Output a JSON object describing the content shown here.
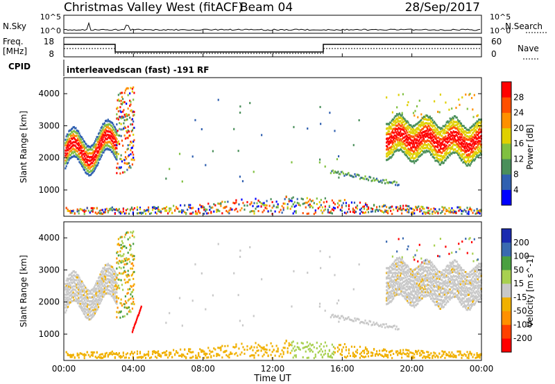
{
  "header": {
    "station": "Christmas Valley West (fitACF)",
    "beam": "Beam 04",
    "date": "28/Sep/2017"
  },
  "noise": {
    "left_label": "N.Sky",
    "right_label": "N.Search",
    "left_ticks": [
      "10^5",
      "10^0"
    ],
    "right_ticks": [
      "10^5",
      "10^0"
    ]
  },
  "freq": {
    "left_label_1": "Freq.",
    "left_label_2": "[MHz]",
    "left_ticks": [
      "18",
      "8"
    ],
    "right_label": "Nave",
    "right_ticks": [
      "60",
      "0"
    ]
  },
  "cpid": {
    "label": "CPID",
    "text": "interleavedscan (fast) -191 RF"
  },
  "colors": {
    "power": [
      "#0000ff",
      "#3060b0",
      "#4a8f5a",
      "#80c040",
      "#e0d000",
      "#ff9000",
      "#ff5000",
      "#ff0000"
    ],
    "velocity": [
      "#ff0000",
      "#ff4000",
      "#ff9000",
      "#f0b000",
      "#c8c8c8",
      "#a8d050",
      "#4aa040",
      "#3a6ab0",
      "#1a2ab0"
    ]
  },
  "chart_data": [
    {
      "type": "heatmap",
      "title": "",
      "xlabel": "Time UT",
      "ylabel": "Slant Range [km]",
      "x_ticks": [
        "00:00",
        "04:00",
        "08:00",
        "12:00",
        "16:00",
        "20:00",
        "00:00"
      ],
      "xlim_hours": [
        0,
        24
      ],
      "y_ticks": [
        "1000",
        "2000",
        "3000",
        "4000"
      ],
      "ylim_km": [
        180,
        4500
      ],
      "colorbar": {
        "label": "Power [dB]",
        "tick_labels": [
          "4",
          "8",
          "12",
          "16",
          "20",
          "24",
          "28"
        ],
        "range": [
          0,
          32
        ]
      },
      "echo_regions": [
        {
          "name": "early band",
          "t_start": 0.0,
          "t_end": 3.0,
          "r_min": 1600,
          "r_max": 2800
        },
        {
          "name": "burst",
          "t_start": 3.0,
          "t_end": 4.0,
          "r_min": 1300,
          "r_max": 4000
        },
        {
          "name": "ground scatter",
          "t_start": 0.0,
          "t_end": 24.0,
          "r_min": 200,
          "r_max": 600
        },
        {
          "name": "late band",
          "t_start": 18.5,
          "t_end": 24.0,
          "r_min": 1800,
          "r_max": 3600
        }
      ]
    },
    {
      "type": "heatmap",
      "title": "",
      "xlabel": "Time UT",
      "ylabel": "Slant Range [km]",
      "x_ticks": [
        "00:00",
        "04:00",
        "08:00",
        "12:00",
        "16:00",
        "20:00",
        "00:00"
      ],
      "xlim_hours": [
        0,
        24
      ],
      "y_ticks": [
        "1000",
        "2000",
        "3000",
        "4000"
      ],
      "ylim_km": [
        180,
        4500
      ],
      "colorbar": {
        "label": "Velocity [m s^-1]",
        "tick_labels": [
          "200",
          "100",
          "50",
          "15",
          "-15",
          "-50",
          "-100",
          "-200"
        ],
        "range": [
          -250,
          250
        ]
      }
    }
  ]
}
